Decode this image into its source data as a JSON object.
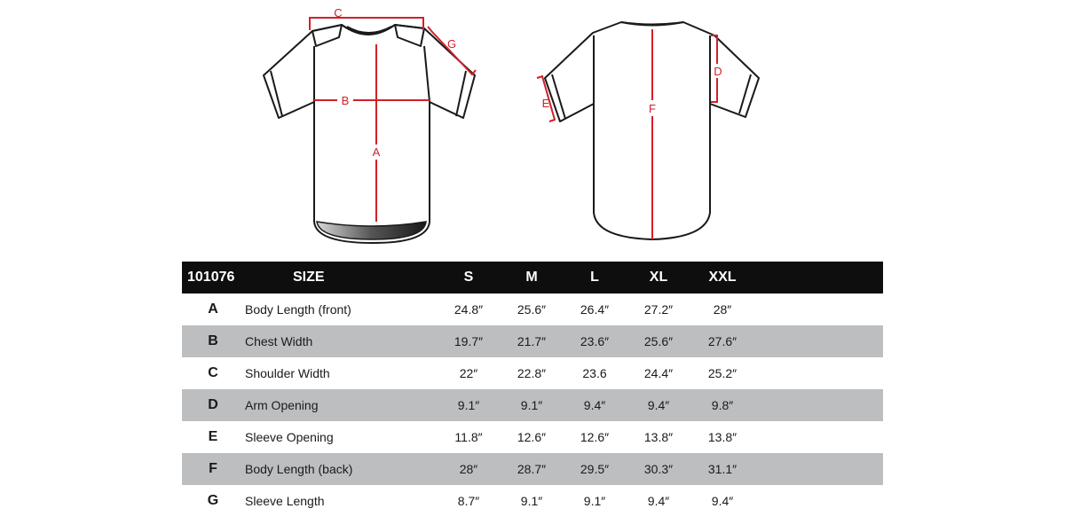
{
  "diagram": {
    "labels": {
      "a": "A",
      "b": "B",
      "c": "C",
      "d": "D",
      "e": "E",
      "f": "F",
      "g": "G"
    },
    "colors": {
      "outline": "#1a1a1a",
      "measure": "#d0202a"
    }
  },
  "table": {
    "model": "101076",
    "size_header": "SIZE",
    "sizes": [
      "S",
      "M",
      "L",
      "XL",
      "XXL"
    ],
    "rows": [
      {
        "code": "A",
        "name": "Body Length (front)",
        "values": [
          "24.8″",
          "25.6″",
          "26.4″",
          "27.2″",
          "28″"
        ]
      },
      {
        "code": "B",
        "name": "Chest Width",
        "values": [
          "19.7″",
          "21.7″",
          "23.6″",
          "25.6″",
          "27.6″"
        ]
      },
      {
        "code": "C",
        "name": "Shoulder Width",
        "values": [
          "22″",
          "22.8″",
          "23.6",
          "24.4″",
          "25.2″"
        ]
      },
      {
        "code": "D",
        "name": "Arm Opening",
        "values": [
          "9.1″",
          "9.1″",
          "9.4″",
          "9.4″",
          "9.8″"
        ]
      },
      {
        "code": "E",
        "name": "Sleeve Opening",
        "values": [
          "11.8″",
          "12.6″",
          "12.6″",
          "13.8″",
          "13.8″"
        ]
      },
      {
        "code": "F",
        "name": "Body Length (back)",
        "values": [
          "28″",
          "28.7″",
          "29.5″",
          "30.3″",
          "31.1″"
        ]
      },
      {
        "code": "G",
        "name": "Sleeve Length",
        "values": [
          "8.7″",
          "9.1″",
          "9.1″",
          "9.4″",
          "9.4″"
        ]
      }
    ],
    "colors": {
      "header_bg": "#0e0e0e",
      "header_text": "#ffffff",
      "shade": "#bdbec0"
    }
  }
}
